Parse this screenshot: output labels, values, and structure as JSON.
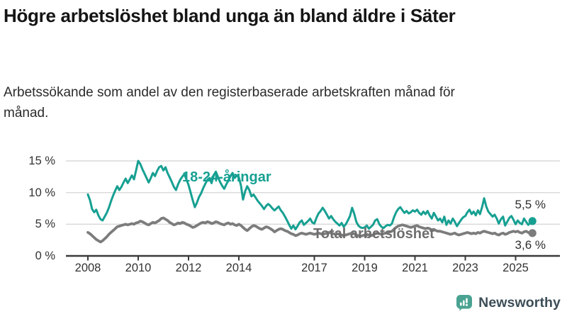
{
  "header": {
    "title": "Högre arbetslöshet bland unga än bland äldre i Säter",
    "subtitle": "Arbetssökande som andel av den registerbaserade arbetskraften månad för månad."
  },
  "chart_data": {
    "type": "line",
    "title": "Högre arbetslöshet bland unga än bland äldre i Säter",
    "x_unit": "month",
    "x_start": "2008-01",
    "x_end": "2025-09",
    "x_tick_labels": [
      "2008",
      "2010",
      "2012",
      "2014",
      "2017",
      "2019",
      "2021",
      "2023",
      "2025"
    ],
    "y_ticks": [
      {
        "value": 0,
        "label": "0 %"
      },
      {
        "value": 5,
        "label": "5 %"
      },
      {
        "value": 10,
        "label": "10 %"
      },
      {
        "value": 15,
        "label": "15 %"
      }
    ],
    "ylim": [
      0,
      16
    ],
    "grid": "horizontal",
    "colors": {
      "young": "#17a092",
      "total": "#7c7c7c",
      "grid": "#d9d9d9",
      "axis": "#3a3a3a",
      "text": "#333333"
    },
    "series": [
      {
        "name": "18-24-åringar",
        "end_label": "5,5 %",
        "end_value": 5.5,
        "color": "#17a092",
        "values": [
          9.7,
          8.8,
          7.4,
          6.9,
          7.3,
          6.4,
          5.8,
          5.6,
          6.2,
          6.8,
          7.6,
          8.6,
          9.5,
          10.3,
          11.0,
          10.4,
          10.9,
          11.6,
          12.2,
          11.5,
          12.1,
          12.7,
          12.1,
          13.5,
          15.0,
          14.5,
          13.7,
          13.0,
          12.3,
          11.6,
          12.3,
          13.1,
          12.6,
          13.4,
          14.0,
          14.2,
          13.5,
          14.0,
          13.1,
          12.4,
          11.7,
          10.9,
          10.4,
          11.3,
          12.0,
          12.5,
          12.9,
          12.1,
          11.2,
          10.0,
          8.8,
          7.7,
          8.4,
          9.3,
          9.9,
          10.7,
          11.4,
          12.0,
          12.3,
          11.5,
          12.7,
          13.3,
          12.5,
          11.7,
          11.1,
          10.6,
          11.3,
          11.9,
          12.6,
          13.1,
          12.3,
          12.7,
          12.4,
          11.1,
          8.9,
          10.2,
          11.0,
          10.4,
          9.4,
          9.7,
          9.2,
          8.7,
          8.3,
          7.9,
          7.4,
          7.9,
          8.2,
          7.9,
          7.5,
          7.2,
          7.5,
          7.8,
          7.2,
          6.8,
          6.2,
          5.6,
          4.9,
          4.3,
          4.8,
          4.2,
          4.7,
          5.3,
          5.6,
          4.9,
          5.2,
          5.5,
          5.9,
          5.3,
          5.1,
          6.0,
          6.7,
          7.1,
          7.6,
          7.1,
          6.5,
          5.9,
          6.3,
          5.8,
          5.4,
          5.1,
          4.8,
          5.2,
          4.6,
          5.0,
          5.6,
          6.3,
          7.6,
          6.7,
          5.4,
          4.8,
          4.5,
          4.4,
          4.5,
          4.8,
          4.3,
          4.6,
          4.9,
          5.6,
          5.8,
          5.0,
          4.6,
          4.4,
          4.7,
          4.9,
          4.8,
          5.1,
          6.1,
          6.9,
          7.4,
          7.7,
          7.2,
          6.8,
          7.1,
          6.7,
          6.9,
          7.2,
          7.0,
          7.3,
          6.8,
          6.5,
          7.0,
          6.6,
          7.1,
          6.4,
          5.9,
          6.8,
          6.2,
          5.6,
          5.9,
          5.3,
          6.2,
          4.9,
          5.6,
          5.1,
          5.9,
          5.4,
          4.7,
          5.2,
          5.7,
          6.1,
          6.3,
          6.9,
          7.3,
          6.6,
          7.0,
          6.4,
          7.2,
          6.6,
          7.7,
          9.1,
          7.8,
          7.0,
          6.6,
          6.2,
          6.5,
          5.9,
          5.1,
          5.8,
          6.2,
          4.8,
          5.4,
          6.0,
          6.3,
          5.7,
          5.0,
          5.6,
          5.2,
          5.0,
          5.9,
          5.4,
          4.9,
          5.2,
          5.5
        ]
      },
      {
        "name": "Total arbetslöshet",
        "end_label": "3,6 %",
        "end_value": 3.6,
        "color": "#7c7c7c",
        "values": [
          3.7,
          3.5,
          3.2,
          2.9,
          2.6,
          2.4,
          2.2,
          2.4,
          2.7,
          3.0,
          3.4,
          3.7,
          4.0,
          4.3,
          4.6,
          4.7,
          4.8,
          4.9,
          5.0,
          4.9,
          5.0,
          5.1,
          5.0,
          5.2,
          5.3,
          5.5,
          5.4,
          5.2,
          5.0,
          4.9,
          5.1,
          5.3,
          5.2,
          5.4,
          5.6,
          5.9,
          6.0,
          5.8,
          5.6,
          5.3,
          5.1,
          4.9,
          5.0,
          5.2,
          5.1,
          5.3,
          5.2,
          5.0,
          4.9,
          4.7,
          4.5,
          4.6,
          4.8,
          5.0,
          5.2,
          5.3,
          5.2,
          5.4,
          5.3,
          5.1,
          5.2,
          5.4,
          5.3,
          5.1,
          5.0,
          4.9,
          5.1,
          5.2,
          5.0,
          5.1,
          4.9,
          4.8,
          5.0,
          4.8,
          4.5,
          4.2,
          4.0,
          4.3,
          4.6,
          4.8,
          4.7,
          4.5,
          4.3,
          4.2,
          4.4,
          4.6,
          4.5,
          4.3,
          4.1,
          3.8,
          4.0,
          4.2,
          4.3,
          4.2,
          4.0,
          3.9,
          3.7,
          3.5,
          3.4,
          3.2,
          3.3,
          3.5,
          3.6,
          3.5,
          3.4,
          3.5,
          3.6,
          3.5,
          3.4,
          3.5,
          3.6,
          3.5,
          3.4,
          3.5,
          3.6,
          3.7,
          3.6,
          3.5,
          3.4,
          3.5,
          3.4,
          3.3,
          3.2,
          3.3,
          3.4,
          3.5,
          3.6,
          3.5,
          3.3,
          3.2,
          3.1,
          3.2,
          3.3,
          3.4,
          3.3,
          3.2,
          3.3,
          3.5,
          3.6,
          3.5,
          3.4,
          3.5,
          3.6,
          3.7,
          3.8,
          3.9,
          4.2,
          4.5,
          4.7,
          4.8,
          4.9,
          4.8,
          4.7,
          4.6,
          4.5,
          4.6,
          4.7,
          4.8,
          4.6,
          4.5,
          4.4,
          4.3,
          4.4,
          4.3,
          4.1,
          4.2,
          4.0,
          3.9,
          3.9,
          3.8,
          3.7,
          3.6,
          3.5,
          3.4,
          3.5,
          3.6,
          3.4,
          3.3,
          3.4,
          3.5,
          3.6,
          3.7,
          3.6,
          3.5,
          3.6,
          3.5,
          3.7,
          3.6,
          3.8,
          3.9,
          3.8,
          3.7,
          3.6,
          3.5,
          3.6,
          3.4,
          3.3,
          3.5,
          3.6,
          3.4,
          3.5,
          3.7,
          3.8,
          3.9,
          3.8,
          3.9,
          3.7,
          3.6,
          3.8,
          3.9,
          3.7,
          3.5,
          3.6
        ]
      }
    ]
  },
  "footer": {
    "brand": "Newsworthy"
  }
}
